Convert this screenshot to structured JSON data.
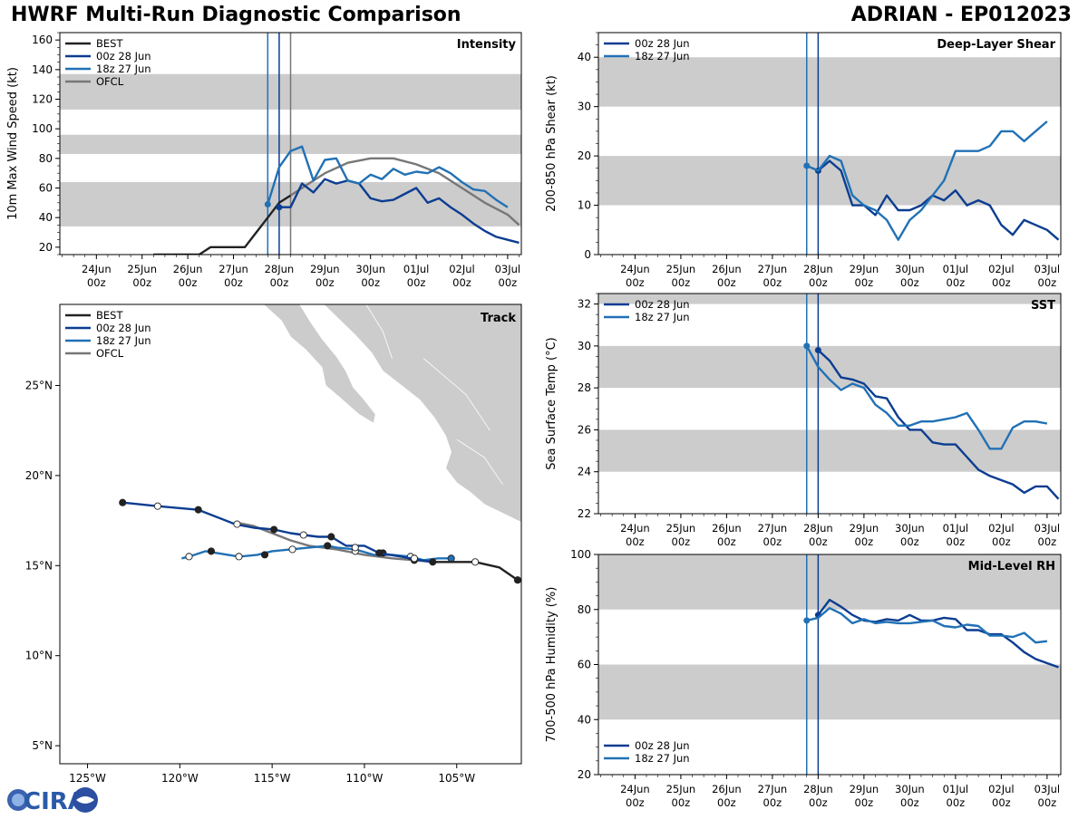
{
  "header": {
    "title_left": "HWRF Multi-Run Diagnostic Comparison",
    "title_right": "ADRIAN - EP012023"
  },
  "logo": {
    "text": "CIRA"
  },
  "colors": {
    "best": "#222222",
    "run00": "#0b3d91",
    "run18": "#2171b5",
    "ofcl": "#777777",
    "band": "#cccccc",
    "land": "#cccccc"
  },
  "time_ticks": [
    "24Jun\n00z",
    "25Jun\n00z",
    "26Jun\n00z",
    "27Jun\n00z",
    "28Jun\n00z",
    "29Jun\n00z",
    "30Jun\n00z",
    "01Jul\n00z",
    "02Jul\n00z",
    "03Jul\n00z"
  ],
  "chart_data": [
    {
      "id": "intensity",
      "type": "line",
      "title": "Intensity",
      "ylabel": "10m Max Wind Speed (kt)",
      "ylim": [
        15,
        165
      ],
      "yticks": [
        20,
        40,
        60,
        80,
        100,
        120,
        140,
        160
      ],
      "xlim": [
        -0.8,
        9.3
      ],
      "bands": [
        [
          34,
          64
        ],
        [
          83,
          96
        ],
        [
          113,
          137
        ]
      ],
      "vlines": [
        {
          "x": 3.75,
          "series": "run18"
        },
        {
          "x": 4.0,
          "series": "run00"
        },
        {
          "x": 4.25,
          "series": "ofcl"
        }
      ],
      "legend": [
        "BEST",
        "00z 28 Jun",
        "18z 27 Jun",
        "OFCL"
      ],
      "series": [
        {
          "name": "BEST",
          "key": "best",
          "x": [
            1.25,
            1.5,
            1.75,
            2.0,
            2.25,
            2.5,
            2.75,
            3.0,
            3.25,
            3.5,
            3.75,
            4.0,
            4.25
          ],
          "y": [
            15,
            15,
            15,
            15,
            15,
            20,
            20,
            20,
            20,
            30,
            40,
            50,
            55
          ]
        },
        {
          "name": "OFCL",
          "key": "ofcl",
          "x": [
            4.25,
            4.5,
            5.0,
            5.5,
            6.0,
            6.5,
            7.0,
            7.5,
            8.0,
            8.5,
            9.0,
            9.25
          ],
          "y": [
            55,
            60,
            70,
            77,
            80,
            80,
            76,
            70,
            60,
            50,
            42,
            35
          ]
        },
        {
          "name": "00z 28 Jun",
          "key": "run00",
          "marker_first": true,
          "x": [
            4.0,
            4.25,
            4.5,
            4.75,
            5.0,
            5.25,
            5.5,
            5.75,
            6.0,
            6.25,
            6.5,
            6.75,
            7.0,
            7.25,
            7.5,
            7.75,
            8.0,
            8.25,
            8.5,
            8.75,
            9.0,
            9.25
          ],
          "y": [
            47,
            47,
            63,
            57,
            66,
            63,
            65,
            63,
            53,
            51,
            52,
            56,
            60,
            50,
            53,
            47,
            42,
            36,
            31,
            27,
            25,
            23
          ]
        },
        {
          "name": "18z 27 Jun",
          "key": "run18",
          "marker_first": true,
          "x": [
            3.75,
            4.0,
            4.25,
            4.5,
            4.75,
            5.0,
            5.25,
            5.5,
            5.75,
            6.0,
            6.25,
            6.5,
            6.75,
            7.0,
            7.25,
            7.5,
            7.75,
            8.0,
            8.25,
            8.5,
            8.75,
            9.0
          ],
          "y": [
            49,
            74,
            85,
            88,
            65,
            79,
            80,
            65,
            63,
            69,
            66,
            73,
            69,
            71,
            70,
            74,
            70,
            64,
            59,
            58,
            52,
            47
          ]
        }
      ]
    },
    {
      "id": "shear",
      "type": "line",
      "title": "Deep-Layer Shear",
      "ylabel": "200-850 hPa Shear (kt)",
      "ylim": [
        0,
        45
      ],
      "yticks": [
        0,
        10,
        20,
        30,
        40
      ],
      "xlim": [
        -0.8,
        9.3
      ],
      "bands": [
        [
          10,
          20
        ],
        [
          30,
          40
        ]
      ],
      "vlines": [
        {
          "x": 3.75,
          "series": "run18"
        },
        {
          "x": 4.0,
          "series": "run00"
        }
      ],
      "legend": [
        "00z 28 Jun",
        "18z 27 Jun"
      ],
      "series": [
        {
          "name": "00z 28 Jun",
          "key": "run00",
          "marker_first": true,
          "x": [
            4.0,
            4.25,
            4.5,
            4.75,
            5.0,
            5.25,
            5.5,
            5.75,
            6.0,
            6.25,
            6.5,
            6.75,
            7.0,
            7.25,
            7.5,
            7.75,
            8.0,
            8.25,
            8.5,
            8.75,
            9.0,
            9.25
          ],
          "y": [
            17,
            19,
            17,
            10,
            10,
            8,
            12,
            9,
            9,
            10,
            12,
            11,
            13,
            10,
            11,
            10,
            6,
            4,
            7,
            6,
            5,
            3
          ]
        },
        {
          "name": "18z 27 Jun",
          "key": "run18",
          "marker_first": true,
          "x": [
            3.75,
            4.0,
            4.25,
            4.5,
            4.75,
            5.0,
            5.25,
            5.5,
            5.75,
            6.0,
            6.25,
            6.5,
            6.75,
            7.0,
            7.25,
            7.5,
            7.75,
            8.0,
            8.25,
            8.5,
            8.75,
            9.0
          ],
          "y": [
            18,
            17,
            20,
            19,
            12,
            10,
            9,
            7,
            3,
            7,
            9,
            12,
            15,
            21,
            21,
            21,
            22,
            25,
            25,
            23,
            25,
            27
          ]
        }
      ]
    },
    {
      "id": "sst",
      "type": "line",
      "title": "SST",
      "ylabel": "Sea Surface Temp (°C)",
      "ylim": [
        22,
        32.5
      ],
      "yticks": [
        22,
        24,
        26,
        28,
        30,
        32
      ],
      "xlim": [
        -0.8,
        9.3
      ],
      "bands": [
        [
          24,
          26
        ],
        [
          28,
          30
        ],
        [
          32,
          32.5
        ]
      ],
      "vlines": [
        {
          "x": 3.75,
          "series": "run18"
        },
        {
          "x": 4.0,
          "series": "run00"
        }
      ],
      "legend": [
        "00z 28 Jun",
        "18z 27 Jun"
      ],
      "series": [
        {
          "name": "00z 28 Jun",
          "key": "run00",
          "marker_first": true,
          "x": [
            4.0,
            4.25,
            4.5,
            4.75,
            5.0,
            5.25,
            5.5,
            5.75,
            6.0,
            6.25,
            6.5,
            6.75,
            7.0,
            7.25,
            7.5,
            7.75,
            8.0,
            8.25,
            8.5,
            8.75,
            9.0,
            9.25
          ],
          "y": [
            29.8,
            29.3,
            28.5,
            28.4,
            28.2,
            27.6,
            27.5,
            26.6,
            26.0,
            26.0,
            25.4,
            25.3,
            25.3,
            24.7,
            24.1,
            23.8,
            23.6,
            23.4,
            23.0,
            23.3,
            23.3,
            22.7
          ]
        },
        {
          "name": "18z 27 Jun",
          "key": "run18",
          "marker_first": true,
          "x": [
            3.75,
            4.0,
            4.25,
            4.5,
            4.75,
            5.0,
            5.25,
            5.5,
            5.75,
            6.0,
            6.25,
            6.5,
            6.75,
            7.0,
            7.25,
            7.5,
            7.75,
            8.0,
            8.25,
            8.5,
            8.75,
            9.0
          ],
          "y": [
            30.0,
            29.0,
            28.4,
            27.9,
            28.2,
            28.0,
            27.2,
            26.8,
            26.2,
            26.2,
            26.4,
            26.4,
            26.5,
            26.6,
            26.8,
            26.0,
            25.1,
            25.1,
            26.1,
            26.4,
            26.4,
            26.3
          ]
        }
      ]
    },
    {
      "id": "rh",
      "type": "line",
      "title": "Mid-Level RH",
      "ylabel": "700-500 hPa Humidity (%)",
      "ylim": [
        20,
        100
      ],
      "yticks": [
        20,
        40,
        60,
        80,
        100
      ],
      "xlim": [
        -0.8,
        9.3
      ],
      "bands": [
        [
          40,
          60
        ],
        [
          80,
          100
        ]
      ],
      "vlines": [
        {
          "x": 3.75,
          "series": "run18"
        },
        {
          "x": 4.0,
          "series": "run00"
        }
      ],
      "legend": [
        "00z 28 Jun",
        "18z 27 Jun"
      ],
      "series": [
        {
          "name": "00z 28 Jun",
          "key": "run00",
          "marker_first": true,
          "x": [
            4.0,
            4.25,
            4.5,
            4.75,
            5.0,
            5.25,
            5.5,
            5.75,
            6.0,
            6.25,
            6.5,
            6.75,
            7.0,
            7.25,
            7.5,
            7.75,
            8.0,
            8.25,
            8.5,
            8.75,
            9.0,
            9.25
          ],
          "y": [
            78,
            83.5,
            81,
            78,
            76,
            75.5,
            76.5,
            76,
            78,
            76,
            76,
            77,
            76.5,
            72.5,
            72.5,
            71,
            71,
            68,
            64.5,
            62,
            60.5,
            59
          ]
        },
        {
          "name": "18z 27 Jun",
          "key": "run18",
          "marker_first": true,
          "x": [
            3.75,
            4.0,
            4.25,
            4.5,
            4.75,
            5.0,
            5.25,
            5.5,
            5.75,
            6.0,
            6.25,
            6.5,
            6.75,
            7.0,
            7.25,
            7.5,
            7.75,
            8.0,
            8.25,
            8.5,
            8.75,
            9.0
          ],
          "y": [
            76,
            77,
            80.5,
            78.5,
            75,
            76.5,
            75,
            75.5,
            75,
            75,
            75.5,
            76,
            74,
            73.5,
            74.5,
            74,
            70.5,
            70.5,
            70,
            71.5,
            68,
            68.5
          ]
        }
      ]
    },
    {
      "id": "track",
      "type": "scatter",
      "title": "Track",
      "xlim": [
        -126.5,
        -101.5
      ],
      "ylim": [
        4,
        29.5
      ],
      "xticks": [
        -125,
        -120,
        -115,
        -110,
        -105
      ],
      "xtick_labels": [
        "125°W",
        "120°W",
        "115°W",
        "110°W",
        "105°W"
      ],
      "yticks": [
        5,
        10,
        15,
        20,
        25
      ],
      "ytick_labels": [
        "5°N",
        "10°N",
        "15°N",
        "20°N",
        "25°N"
      ],
      "legend": [
        "BEST",
        "00z 28 Jun",
        "18z 27 Jun",
        "OFCL"
      ],
      "series": [
        {
          "name": "BEST",
          "key": "best",
          "lon": [
            -101.7,
            -102.7,
            -104.0,
            -104.7,
            -105.5,
            -106.3
          ],
          "lat": [
            14.2,
            14.9,
            15.2,
            15.2,
            15.2,
            15.2
          ],
          "markers": [
            [
              -101.7,
              14.2,
              1
            ],
            [
              -104.0,
              15.2,
              0
            ]
          ]
        },
        {
          "name": "OFCL",
          "key": "ofcl",
          "lon": [
            -106.3,
            -107.3,
            -108.5,
            -110.0,
            -111.5,
            -113.0,
            -114.0,
            -115.0,
            -116.0,
            -117.0
          ],
          "lat": [
            15.2,
            15.3,
            15.4,
            15.6,
            15.9,
            16.1,
            16.4,
            16.8,
            17.2,
            17.4
          ],
          "markers": [
            [
              -107.3,
              15.3,
              1
            ]
          ]
        },
        {
          "name": "00z 28 Jun",
          "key": "run00",
          "lon": [
            -106.3,
            -107.0,
            -108.0,
            -109.2,
            -110.0,
            -110.6,
            -111.0,
            -111.8,
            -112.5,
            -113.3,
            -114.0,
            -114.9,
            -116.0,
            -117.0,
            -119.0,
            -121.2,
            -123.1
          ],
          "lat": [
            15.2,
            15.3,
            15.5,
            15.7,
            16.1,
            16.1,
            16.1,
            16.6,
            16.6,
            16.7,
            16.8,
            17.0,
            17.1,
            17.3,
            18.1,
            18.3,
            18.5
          ],
          "markers": [
            [
              -106.3,
              15.2,
              1
            ],
            [
              -107.3,
              15.4,
              0
            ],
            [
              -109.2,
              15.7,
              1
            ],
            [
              -110.5,
              16.0,
              0
            ],
            [
              -111.8,
              16.6,
              1
            ],
            [
              -113.3,
              16.7,
              0
            ],
            [
              -114.9,
              17.0,
              1
            ],
            [
              -116.9,
              17.3,
              0
            ],
            [
              -119.0,
              18.1,
              1
            ],
            [
              -121.2,
              18.3,
              0
            ],
            [
              -123.1,
              18.5,
              1
            ]
          ]
        },
        {
          "name": "18z 27 Jun",
          "key": "run18",
          "lon": [
            -105.3,
            -106.0,
            -106.8,
            -107.5,
            -108.5,
            -109.5,
            -110.5,
            -111.5,
            -112.0,
            -113.0,
            -114.0,
            -115.0,
            -115.8,
            -116.8,
            -118.0,
            -118.6,
            -119.5,
            -119.9
          ],
          "lat": [
            15.4,
            15.4,
            15.3,
            15.5,
            15.6,
            15.6,
            15.9,
            16.0,
            16.1,
            16.0,
            15.9,
            15.8,
            15.6,
            15.5,
            15.7,
            15.8,
            15.5,
            15.4
          ],
          "markers": [
            [
              -105.3,
              15.4,
              1
            ],
            [
              -107.5,
              15.5,
              0
            ],
            [
              -109.0,
              15.7,
              1
            ],
            [
              -110.5,
              15.8,
              0
            ],
            [
              -112.0,
              16.1,
              1
            ],
            [
              -113.9,
              15.9,
              0
            ],
            [
              -115.4,
              15.6,
              1
            ],
            [
              -116.8,
              15.5,
              0
            ],
            [
              -118.3,
              15.8,
              1
            ],
            [
              -119.5,
              15.5,
              0
            ]
          ]
        }
      ]
    }
  ]
}
